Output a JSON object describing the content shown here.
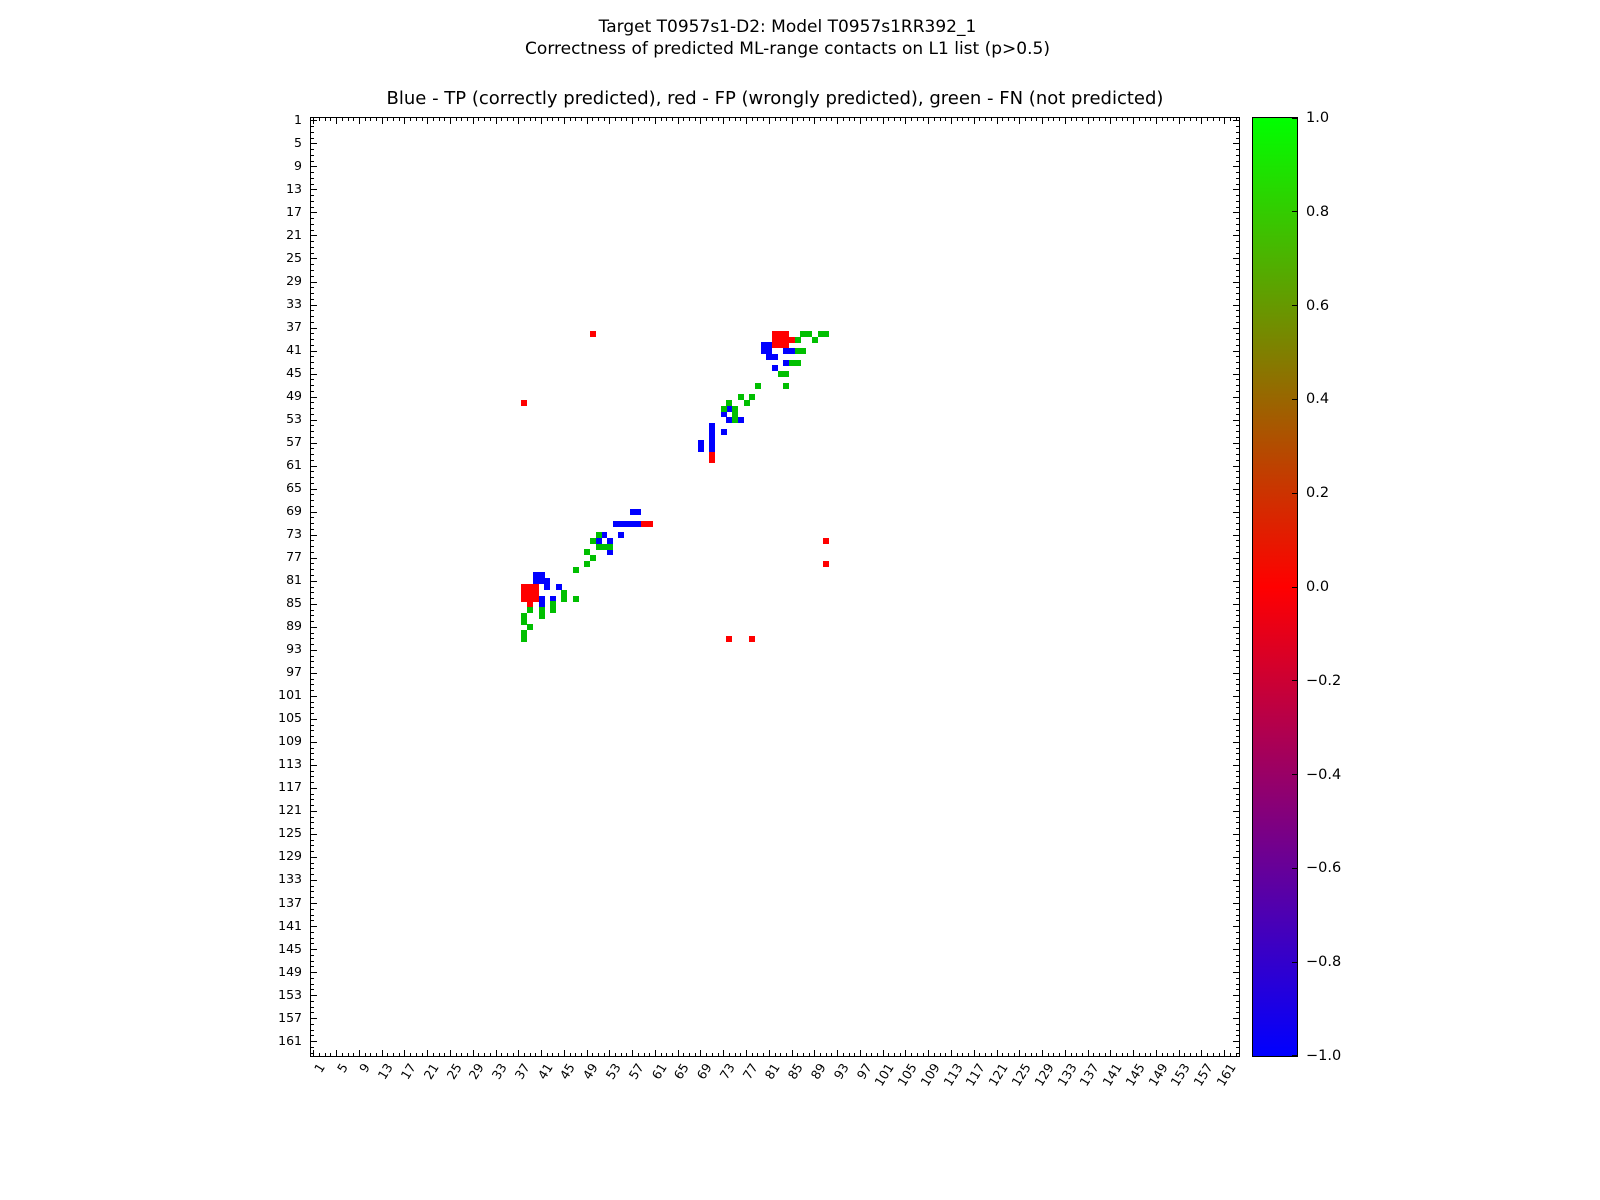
{
  "figure": {
    "suptitle_line1": "Target T0957s1-D2: Model T0957s1RR392_1",
    "suptitle_line2": "Correctness of predicted ML-range contacts on L1 list (p>0.5)",
    "axes_title": "Blue - TP (correctly predicted), red - FP (wrongly predicted), green - FN (not predicted)"
  },
  "chart_data": {
    "type": "scatter",
    "title": "Blue - TP (correctly predicted), red - FP (wrongly predicted), green - FN (not predicted)",
    "xlabel": "",
    "ylabel": "",
    "x_range": [
      0.5,
      163.5
    ],
    "y_range": [
      0.5,
      163.5
    ],
    "y_axis_inverted": true,
    "grid": false,
    "marker": "square",
    "tick_start": 1,
    "tick_step": 4,
    "tick_end": 161,
    "x_tick_labels": [
      "1",
      "5",
      "9",
      "13",
      "17",
      "21",
      "25",
      "29",
      "33",
      "37",
      "41",
      "45",
      "49",
      "53",
      "57",
      "61",
      "65",
      "69",
      "73",
      "77",
      "81",
      "85",
      "89",
      "93",
      "97",
      "101",
      "105",
      "109",
      "113",
      "117",
      "121",
      "125",
      "129",
      "133",
      "137",
      "141",
      "145",
      "149",
      "153",
      "157",
      "161"
    ],
    "y_tick_labels": [
      "1",
      "5",
      "9",
      "13",
      "17",
      "21",
      "25",
      "29",
      "33",
      "37",
      "41",
      "45",
      "49",
      "53",
      "57",
      "61",
      "65",
      "69",
      "73",
      "77",
      "81",
      "85",
      "89",
      "93",
      "97",
      "101",
      "105",
      "109",
      "113",
      "117",
      "121",
      "125",
      "129",
      "133",
      "137",
      "141",
      "145",
      "149",
      "153",
      "157",
      "161"
    ],
    "symmetric_points_mirrored": true,
    "series": [
      {
        "name": "TP (correctly predicted)",
        "color": "#0000ff",
        "points_row_col": [
          [
            40,
            80
          ],
          [
            40,
            81
          ],
          [
            41,
            80
          ],
          [
            41,
            81
          ],
          [
            41,
            84
          ],
          [
            41,
            85
          ],
          [
            42,
            81
          ],
          [
            42,
            82
          ],
          [
            43,
            84
          ],
          [
            44,
            82
          ],
          [
            51,
            74
          ],
          [
            52,
            73
          ],
          [
            53,
            74
          ],
          [
            53,
            76
          ],
          [
            54,
            71
          ],
          [
            55,
            71
          ],
          [
            55,
            73
          ],
          [
            56,
            71
          ],
          [
            57,
            69
          ],
          [
            57,
            71
          ],
          [
            58,
            69
          ],
          [
            58,
            71
          ]
        ]
      },
      {
        "name": "FP (wrongly predicted)",
        "color": "#ff0000",
        "points_row_col": [
          [
            38,
            50
          ],
          [
            38,
            82
          ],
          [
            38,
            83
          ],
          [
            38,
            84
          ],
          [
            39,
            82
          ],
          [
            39,
            83
          ],
          [
            39,
            84
          ],
          [
            39,
            85
          ],
          [
            40,
            82
          ],
          [
            40,
            83
          ],
          [
            40,
            84
          ],
          [
            59,
            71
          ],
          [
            60,
            71
          ],
          [
            74,
            91
          ],
          [
            78,
            91
          ]
        ]
      },
      {
        "name": "FN (not predicted)",
        "color": "#00bf00",
        "points_row_col": [
          [
            38,
            87
          ],
          [
            38,
            88
          ],
          [
            38,
            90
          ],
          [
            38,
            91
          ],
          [
            39,
            86
          ],
          [
            39,
            89
          ],
          [
            41,
            86
          ],
          [
            41,
            87
          ],
          [
            43,
            85
          ],
          [
            43,
            86
          ],
          [
            45,
            83
          ],
          [
            45,
            84
          ],
          [
            47,
            79
          ],
          [
            47,
            84
          ],
          [
            49,
            76
          ],
          [
            49,
            78
          ],
          [
            50,
            74
          ],
          [
            50,
            77
          ],
          [
            51,
            73
          ],
          [
            51,
            75
          ],
          [
            52,
            75
          ],
          [
            53,
            75
          ]
        ]
      }
    ],
    "colorbar": {
      "min": -1.0,
      "max": 1.0,
      "tick_labels": [
        "1.0",
        "0.8",
        "0.6",
        "0.4",
        "0.2",
        "0.0",
        "−0.2",
        "−0.4",
        "−0.6",
        "−0.8",
        "−1.0"
      ],
      "gradient_stops": [
        {
          "value": 1.0,
          "color": "#00ff00"
        },
        {
          "value": 0.0,
          "color": "#ff0000"
        },
        {
          "value": -1.0,
          "color": "#0000ff"
        }
      ]
    }
  }
}
